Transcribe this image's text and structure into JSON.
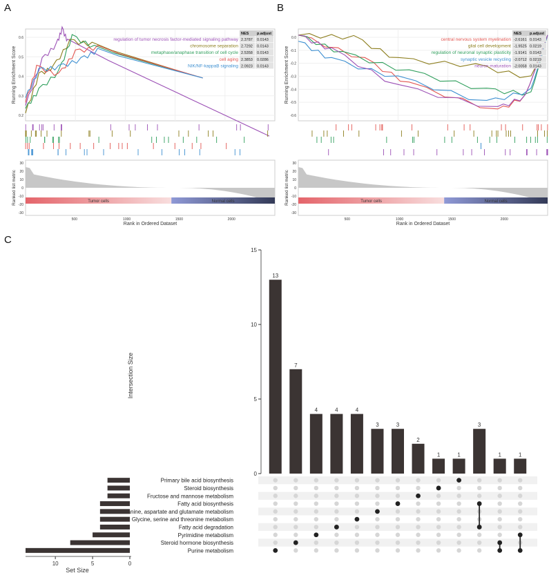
{
  "panels": [
    {
      "letter": "A",
      "ylabel": "Running Enrichment Score",
      "xlabel": "Rank in Ordered Dataset",
      "ylabel2": "Ranked list metric",
      "yticks": [
        "0.6",
        "0.5",
        "0.4",
        "0.3",
        "0.2"
      ],
      "y2ticks": [
        "30",
        "20",
        "10",
        "0",
        "-10",
        "-20",
        "-30"
      ],
      "xticks": [
        "500",
        "1000",
        "1500",
        "2000"
      ],
      "band_left": "Tumor cells",
      "band_right": "Normal cells",
      "table_header": [
        "NES",
        "p.adjust"
      ],
      "pathways": [
        {
          "name": "regulation of tumor necrosis factor-mediated signaling pathway",
          "color": "#9b4fb5",
          "nes": "2.3787",
          "padj": "0.0143"
        },
        {
          "name": "chromosome separation",
          "color": "#8c7d1c",
          "nes": "2.7292",
          "padj": "0.0143"
        },
        {
          "name": "metaphase/anaphase transition of cell cycle",
          "color": "#2e9e5b",
          "nes": "2.5358",
          "padj": "0.0143"
        },
        {
          "name": "cell aging",
          "color": "#e2544f",
          "nes": "2.3853",
          "padj": "0.0286"
        },
        {
          "name": "NIK/NF-kappaB signaling",
          "color": "#3d8fd1",
          "nes": "2.0923",
          "padj": "0.0143"
        }
      ]
    },
    {
      "letter": "B",
      "ylabel": "Running Enrichment Score",
      "xlabel": "Rank in Ordered Dataset",
      "ylabel2": "Ranked list metric",
      "yticks": [
        "0.0",
        "-0.1",
        "-0.2",
        "-0.3",
        "-0.4",
        "-0.5",
        "-0.6"
      ],
      "y2ticks": [
        "30",
        "20",
        "10",
        "0",
        "-10",
        "-20",
        "-30"
      ],
      "xticks": [
        "500",
        "1000",
        "1500",
        "2000"
      ],
      "band_left": "Tumor cells",
      "band_right": "Normal cells",
      "table_header": [
        "NES",
        "p.adjust"
      ],
      "pathways": [
        {
          "name": "central nervous system myelination",
          "color": "#e2544f",
          "nes": "-2.6161",
          "padj": "0.0143"
        },
        {
          "name": "glial cell development",
          "color": "#8c7d1c",
          "nes": "-1.9525",
          "padj": "0.0219"
        },
        {
          "name": "regulation of neuronal synaptic plasticity",
          "color": "#2e9e5b",
          "nes": "-1.9141",
          "padj": "0.0143"
        },
        {
          "name": "synaptic vesicle recycling",
          "color": "#3d8fd1",
          "nes": "-2.0712",
          "padj": "0.0219"
        },
        {
          "name": "neuron maturation",
          "color": "#9b4fb5",
          "nes": "-2.0058",
          "padj": "0.0143"
        }
      ]
    }
  ],
  "panel_c": {
    "letter": "C",
    "ylabel": "Intersection Size",
    "xlabel": "Set Size",
    "yticks": [
      "15",
      "10",
      "5",
      "0"
    ],
    "xticks": [
      "10",
      "5",
      "0"
    ]
  },
  "chart_data": [
    {
      "type": "line",
      "panel": "A",
      "ylabel": "Running Enrichment Score",
      "xlabel": "Rank in Ordered Dataset",
      "xlim": [
        0,
        2250
      ],
      "ylim": [
        0.1,
        0.7
      ],
      "series": [
        {
          "name": "regulation of tumor necrosis factor-mediated signaling pathway",
          "x": [
            0,
            150,
            280,
            330,
            380,
            2200
          ],
          "y": [
            0.2,
            0.5,
            0.6,
            0.7,
            0.62,
            0.0
          ]
        },
        {
          "name": "chromosome separation",
          "x": [
            0,
            120,
            250,
            400,
            600,
            1500
          ],
          "y": [
            0.15,
            0.4,
            0.45,
            0.62,
            0.6,
            0.4
          ]
        },
        {
          "name": "metaphase/anaphase transition of cell cycle",
          "x": [
            0,
            120,
            300,
            420,
            620,
            1500
          ],
          "y": [
            0.18,
            0.3,
            0.42,
            0.65,
            0.58,
            0.4
          ]
        },
        {
          "name": "cell aging",
          "x": [
            0,
            100,
            300,
            450,
            650,
            1600
          ],
          "y": [
            0.22,
            0.45,
            0.4,
            0.55,
            0.58,
            0.38
          ]
        },
        {
          "name": "NIK/NF-kappaB signaling",
          "x": [
            0,
            120,
            300,
            500,
            650,
            1600
          ],
          "y": [
            0.25,
            0.43,
            0.45,
            0.5,
            0.56,
            0.38
          ]
        }
      ]
    },
    {
      "type": "line",
      "panel": "B",
      "ylabel": "Running Enrichment Score",
      "xlabel": "Rank in Ordered Dataset",
      "xlim": [
        0,
        2250
      ],
      "ylim": [
        -0.7,
        0.05
      ],
      "series": [
        {
          "name": "central nervous system myelination",
          "x": [
            0,
            600,
            1000,
            1800,
            2050,
            2250
          ],
          "y": [
            0.0,
            -0.2,
            -0.4,
            -0.62,
            -0.5,
            0.0
          ]
        },
        {
          "name": "glial cell development",
          "x": [
            0,
            500,
            900,
            1600,
            2100,
            2250
          ],
          "y": [
            0.0,
            -0.02,
            -0.2,
            -0.25,
            -0.35,
            0.0
          ]
        },
        {
          "name": "regulation of neuronal synaptic plasticity",
          "x": [
            0,
            400,
            1000,
            1700,
            2100,
            2250
          ],
          "y": [
            0.0,
            -0.15,
            -0.3,
            -0.45,
            -0.48,
            0.0
          ]
        },
        {
          "name": "synaptic vesicle recycling",
          "x": [
            0,
            300,
            900,
            1700,
            2100,
            2250
          ],
          "y": [
            -0.05,
            -0.2,
            -0.35,
            -0.55,
            -0.45,
            0.0
          ]
        },
        {
          "name": "neuron maturation",
          "x": [
            0,
            300,
            900,
            1800,
            2050,
            2250
          ],
          "y": [
            0.0,
            -0.12,
            -0.42,
            -0.6,
            -0.5,
            0.0
          ]
        }
      ]
    },
    {
      "type": "bar",
      "panel": "C",
      "ylabel": "Intersection Size",
      "ylim": [
        0,
        15
      ],
      "values": [
        13,
        7,
        4,
        4,
        4,
        3,
        3,
        2,
        1,
        1,
        3,
        1,
        1
      ],
      "sets": [
        {
          "name": "Primary bile acid biosynthesis",
          "size": 3
        },
        {
          "name": "Steroid biosynthesis",
          "size": 3
        },
        {
          "name": "Fructose and mannose metabolism",
          "size": 3
        },
        {
          "name": "Fatty acid biosynthesis",
          "size": 4
        },
        {
          "name": "Alanine, aspartate and glutamate metabolism",
          "size": 4
        },
        {
          "name": "Glycine, serine and threonine metabolism",
          "size": 4
        },
        {
          "name": "Fatty acid degradation",
          "size": 4
        },
        {
          "name": "Pyrimidine metabolism",
          "size": 5
        },
        {
          "name": "Steroid hormone biosynthesis",
          "size": 8
        },
        {
          "name": "Purine metabolism",
          "size": 14
        }
      ],
      "matrix": [
        [
          9
        ],
        [
          8
        ],
        [
          7
        ],
        [
          6
        ],
        [
          5
        ],
        [
          4
        ],
        [
          3
        ],
        [
          2
        ],
        [
          1
        ],
        [
          0
        ],
        [
          6,
          3
        ],
        [
          8,
          9
        ],
        [
          7,
          9
        ]
      ],
      "set_size_lim": [
        0,
        14
      ]
    }
  ]
}
